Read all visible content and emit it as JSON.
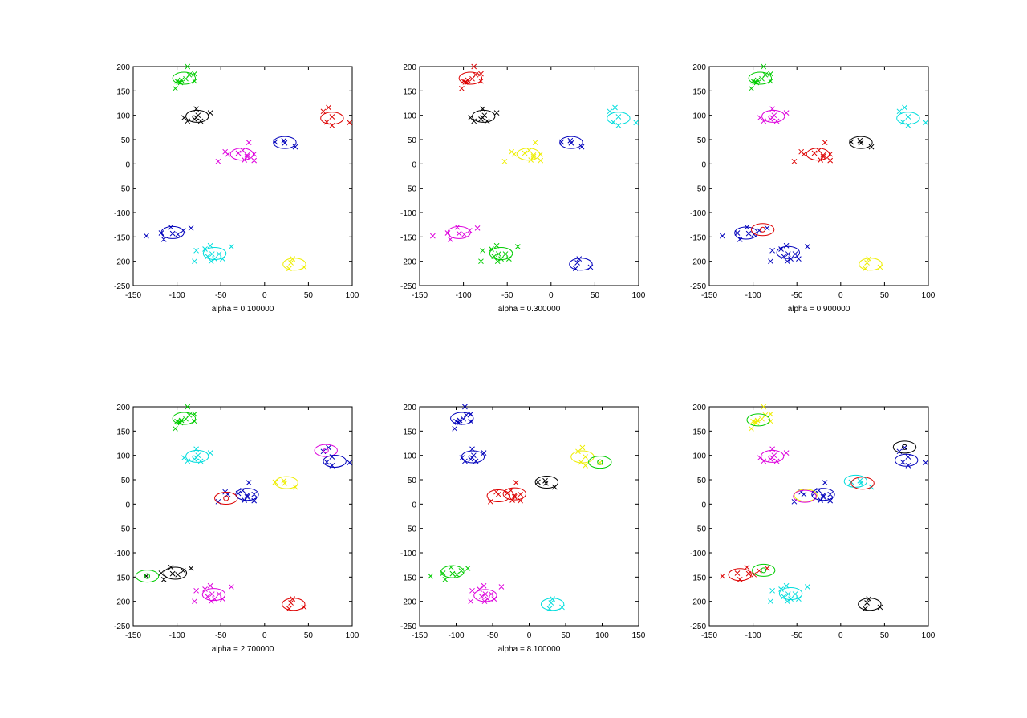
{
  "chart_data": [
    {
      "type": "scatter",
      "xlabel": "alpha = 0.100000",
      "xlim": [
        -150,
        100
      ],
      "ylim": [
        -250,
        200
      ],
      "xticks": [
        -150,
        -100,
        -50,
        0,
        50,
        100
      ],
      "yticks": [
        -250,
        -200,
        -150,
        -100,
        -50,
        0,
        50,
        100,
        150,
        200
      ],
      "cluster_colors": {
        "A": "#00cc00",
        "B": "#000000",
        "C": "#dd0000",
        "D": "#dd00dd",
        "E": "#0000bb",
        "F": "#0000bb",
        "G": "#00dddd",
        "H": "#eeee00"
      },
      "ellipses": [
        {
          "cx": -92,
          "cy": 176,
          "color": "#00cc00"
        },
        {
          "cx": -77,
          "cy": 98,
          "color": "#000000"
        },
        {
          "cx": 77,
          "cy": 94,
          "color": "#dd0000"
        },
        {
          "cx": -26,
          "cy": 20,
          "color": "#dd00dd"
        },
        {
          "cx": 23,
          "cy": 44,
          "color": "#0000bb"
        },
        {
          "cx": -105,
          "cy": -141,
          "color": "#0000bb"
        },
        {
          "cx": -57,
          "cy": -184,
          "color": "#00dddd"
        },
        {
          "cx": 34,
          "cy": -206,
          "color": "#eeee00"
        }
      ]
    },
    {
      "type": "scatter",
      "xlabel": "alpha = 0.300000",
      "xlim": [
        -150,
        100
      ],
      "ylim": [
        -250,
        200
      ],
      "xticks": [
        -150,
        -100,
        -50,
        0,
        50,
        100
      ],
      "yticks": [
        -250,
        -200,
        -150,
        -100,
        -50,
        0,
        50,
        100,
        150,
        200
      ],
      "cluster_colors": {
        "A": "#dd0000",
        "B": "#000000",
        "C": "#00dddd",
        "D": "#eeee00",
        "E": "#0000bb",
        "F": "#dd00dd",
        "G": "#00cc00",
        "H": "#0000bb"
      },
      "ellipses": [
        {
          "cx": -92,
          "cy": 176,
          "color": "#dd0000"
        },
        {
          "cx": -77,
          "cy": 98,
          "color": "#000000"
        },
        {
          "cx": 77,
          "cy": 94,
          "color": "#00dddd"
        },
        {
          "cx": -26,
          "cy": 20,
          "color": "#eeee00"
        },
        {
          "cx": 23,
          "cy": 44,
          "color": "#0000bb"
        },
        {
          "cx": -105,
          "cy": -141,
          "color": "#dd00dd"
        },
        {
          "cx": -57,
          "cy": -184,
          "color": "#00cc00"
        },
        {
          "cx": 34,
          "cy": -206,
          "color": "#0000bb"
        }
      ]
    },
    {
      "type": "scatter",
      "xlabel": "alpha = 0.900000",
      "xlim": [
        -150,
        100
      ],
      "ylim": [
        -250,
        200
      ],
      "xticks": [
        -150,
        -100,
        -50,
        0,
        50,
        100
      ],
      "yticks": [
        -250,
        -200,
        -150,
        -100,
        -50,
        0,
        50,
        100,
        150,
        200
      ],
      "cluster_colors": {
        "A": "#00cc00",
        "B": "#dd00dd",
        "C": "#00dddd",
        "D": "#dd0000",
        "E": "#000000",
        "F": "#0000bb",
        "G": "#0000bb",
        "H": "#eeee00"
      },
      "ellipses": [
        {
          "cx": -92,
          "cy": 176,
          "color": "#00cc00"
        },
        {
          "cx": -77,
          "cy": 98,
          "color": "#dd00dd"
        },
        {
          "cx": 77,
          "cy": 94,
          "color": "#00dddd"
        },
        {
          "cx": -26,
          "cy": 20,
          "color": "#dd0000"
        },
        {
          "cx": 23,
          "cy": 44,
          "color": "#000000"
        },
        {
          "cx": -108,
          "cy": -142,
          "color": "#0000bb"
        },
        {
          "cx": -89,
          "cy": -135,
          "color": "#dd0000",
          "center": true
        },
        {
          "cx": -60,
          "cy": -182,
          "color": "#0000bb"
        },
        {
          "cx": 34,
          "cy": -206,
          "color": "#eeee00"
        }
      ]
    },
    {
      "type": "scatter",
      "xlabel": "alpha = 2.700000",
      "xlim": [
        -150,
        100
      ],
      "ylim": [
        -250,
        200
      ],
      "xticks": [
        -150,
        -100,
        -50,
        0,
        50,
        100
      ],
      "yticks": [
        -250,
        -200,
        -150,
        -100,
        -50,
        0,
        50,
        100,
        150,
        200
      ],
      "cluster_colors": {
        "A": "#00cc00",
        "B": "#00dddd",
        "C": "#0000bb",
        "D": "#0000bb",
        "E": "#eeee00",
        "F": "#000000",
        "G": "#dd00dd",
        "H": "#dd0000"
      },
      "ellipses": [
        {
          "cx": -92,
          "cy": 176,
          "color": "#00cc00"
        },
        {
          "cx": -77,
          "cy": 98,
          "color": "#00dddd"
        },
        {
          "cx": 70,
          "cy": 110,
          "color": "#dd00dd",
          "center": true
        },
        {
          "cx": 80,
          "cy": 88,
          "color": "#0000bb"
        },
        {
          "cx": -20,
          "cy": 20,
          "color": "#0000bb"
        },
        {
          "cx": -44,
          "cy": 12,
          "color": "#dd0000",
          "center": true
        },
        {
          "cx": 25,
          "cy": 44,
          "color": "#eeee00"
        },
        {
          "cx": -102,
          "cy": -142,
          "color": "#000000"
        },
        {
          "cx": -134,
          "cy": -148,
          "color": "#00cc00",
          "center": true
        },
        {
          "cx": -58,
          "cy": -186,
          "color": "#dd00dd"
        },
        {
          "cx": 33,
          "cy": -206,
          "color": "#dd0000"
        }
      ]
    },
    {
      "type": "scatter",
      "xlabel": "alpha = 8.100000",
      "xlim": [
        -150,
        150
      ],
      "ylim": [
        -250,
        200
      ],
      "xticks": [
        -150,
        -100,
        -50,
        0,
        50,
        100,
        150
      ],
      "yticks": [
        -250,
        -200,
        -150,
        -100,
        -50,
        0,
        50,
        100,
        150,
        200
      ],
      "cluster_colors": {
        "A": "#0000bb",
        "B": "#0000bb",
        "C": "#eeee00",
        "D": "#dd0000",
        "E": "#000000",
        "F": "#00cc00",
        "G": "#dd00dd",
        "H": "#00dddd"
      },
      "ellipses": [
        {
          "cx": -92,
          "cy": 176,
          "color": "#0000bb"
        },
        {
          "cx": -77,
          "cy": 97,
          "color": "#0000bb"
        },
        {
          "cx": 73,
          "cy": 97,
          "color": "#eeee00"
        },
        {
          "cx": 97,
          "cy": 86,
          "color": "#00cc00",
          "center": true
        },
        {
          "cx": -42,
          "cy": 17,
          "color": "#dd0000"
        },
        {
          "cx": -20,
          "cy": 21,
          "color": "#dd0000"
        },
        {
          "cx": 24,
          "cy": 45,
          "color": "#000000"
        },
        {
          "cx": -105,
          "cy": -139,
          "color": "#00cc00"
        },
        {
          "cx": -60,
          "cy": -188,
          "color": "#dd00dd"
        },
        {
          "cx": 32,
          "cy": -206,
          "color": "#00dddd"
        }
      ]
    },
    {
      "type": "scatter",
      "xlabel": "",
      "xlim": [
        -150,
        100
      ],
      "ylim": [
        -250,
        200
      ],
      "xticks": [
        -150,
        -100,
        -50,
        0,
        50,
        100
      ],
      "yticks": [
        -250,
        -200,
        -150,
        -100,
        -50,
        0,
        50,
        100,
        150,
        200
      ],
      "cluster_colors": {
        "A": "#eeee00",
        "B": "#dd00dd",
        "C": "#0000bb",
        "D": "#0000bb",
        "E": "#00dddd",
        "F": "#dd0000",
        "G": "#00dddd",
        "H": "#000000"
      },
      "ellipses": [
        {
          "cx": -94,
          "cy": 173,
          "color": "#00cc00"
        },
        {
          "cx": -78,
          "cy": 98,
          "color": "#dd00dd"
        },
        {
          "cx": 73,
          "cy": 117,
          "color": "#000000",
          "center": true
        },
        {
          "cx": 75,
          "cy": 90,
          "color": "#0000bb"
        },
        {
          "cx": -40,
          "cy": 18,
          "color": "#eeee00"
        },
        {
          "cx": -41,
          "cy": 16,
          "color": "#dd00dd"
        },
        {
          "cx": -20,
          "cy": 20,
          "color": "#0000bb"
        },
        {
          "cx": 17,
          "cy": 47,
          "color": "#00dddd"
        },
        {
          "cx": 25,
          "cy": 43,
          "color": "#dd0000"
        },
        {
          "cx": -115,
          "cy": -145,
          "color": "#dd0000"
        },
        {
          "cx": -88,
          "cy": -136,
          "color": "#00cc00",
          "center": true
        },
        {
          "cx": -57,
          "cy": -184,
          "color": "#00dddd"
        },
        {
          "cx": 33,
          "cy": -206,
          "color": "#000000"
        }
      ]
    }
  ],
  "points": {
    "A": [
      [
        -100,
        170
      ],
      [
        -98,
        168
      ],
      [
        -96,
        167
      ],
      [
        -102,
        155
      ],
      [
        -88,
        200
      ],
      [
        -86,
        183
      ],
      [
        -80,
        185
      ],
      [
        -80,
        170
      ],
      [
        -90,
        175
      ],
      [
        -95,
        172
      ]
    ],
    "B": [
      [
        -92,
        95
      ],
      [
        -88,
        88
      ],
      [
        -78,
        113
      ],
      [
        -76,
        100
      ],
      [
        -78,
        95
      ],
      [
        -73,
        88
      ],
      [
        -62,
        105
      ],
      [
        -80,
        92
      ]
    ],
    "C": [
      [
        67,
        108
      ],
      [
        73,
        116
      ],
      [
        71,
        86
      ],
      [
        77,
        97
      ],
      [
        77,
        79
      ],
      [
        97,
        85
      ]
    ],
    "D": [
      [
        -45,
        25
      ],
      [
        -42,
        20
      ],
      [
        -53,
        5
      ],
      [
        -25,
        28
      ],
      [
        -23,
        8
      ],
      [
        -20,
        18
      ],
      [
        -18,
        44
      ],
      [
        -12,
        20
      ],
      [
        -12,
        7
      ],
      [
        -30,
        22
      ],
      [
        -20,
        15
      ]
    ],
    "E": [
      [
        12,
        45
      ],
      [
        22,
        48
      ],
      [
        23,
        43
      ],
      [
        35,
        35
      ]
    ],
    "F": [
      [
        -135,
        -148
      ],
      [
        -118,
        -142
      ],
      [
        -115,
        -155
      ],
      [
        -107,
        -130
      ],
      [
        -105,
        -143
      ],
      [
        -99,
        -145
      ],
      [
        -93,
        -137
      ],
      [
        -84,
        -132
      ]
    ],
    "G": [
      [
        -78,
        -178
      ],
      [
        -80,
        -200
      ],
      [
        -68,
        -175
      ],
      [
        -62,
        -168
      ],
      [
        -60,
        -185
      ],
      [
        -61,
        -200
      ],
      [
        -57,
        -195
      ],
      [
        -52,
        -185
      ],
      [
        -48,
        -195
      ],
      [
        -38,
        -170
      ],
      [
        -65,
        -190
      ]
    ],
    "H": [
      [
        30,
        -203
      ],
      [
        32,
        -195
      ],
      [
        28,
        -215
      ],
      [
        45,
        -212
      ]
    ]
  }
}
